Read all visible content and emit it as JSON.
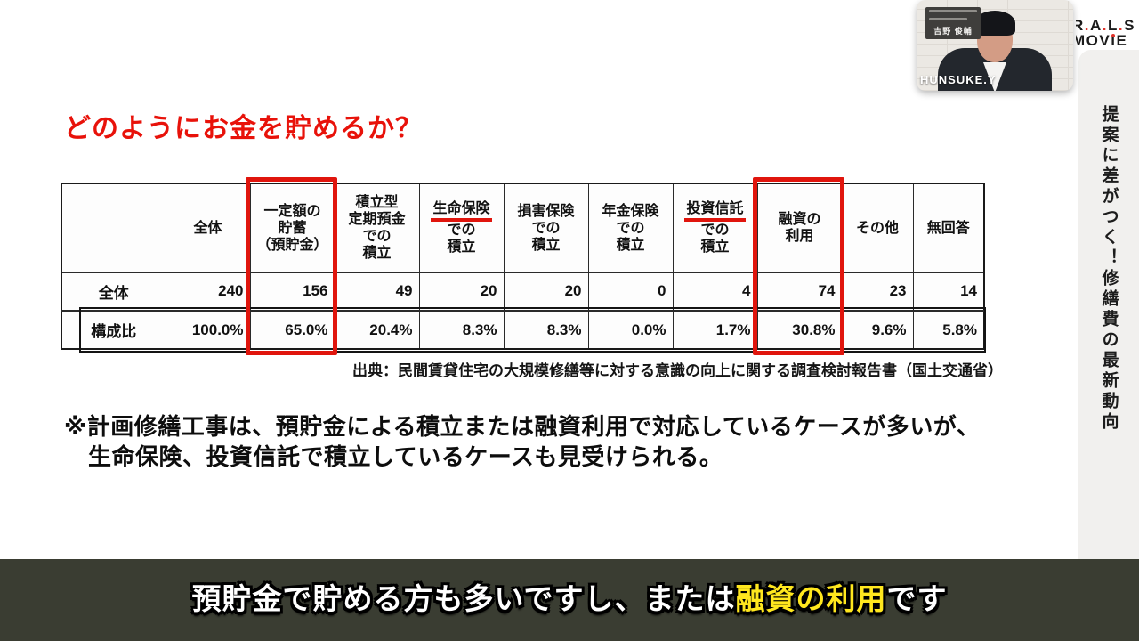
{
  "slide": {
    "title": "どのようにお金を貯めるか？",
    "source": "出典：民間賃貸住宅の大規模修繕等に対する意識の向上に関する調査検討報告書（国土交通省）",
    "note_line1": "※計画修繕工事は、預貯金による積立または融資利用で対応しているケースが多いが、",
    "note_line2": "生命保険、投資信託で積立しているケースも見受けられる。",
    "accent_red": "#e0150d"
  },
  "table": {
    "corner_label": "",
    "columns": [
      {
        "text": "全体",
        "underline_first": false,
        "red_box": false
      },
      {
        "text": "一定額の\n貯蓄\n（預貯金）",
        "underline_first": false,
        "red_box": true
      },
      {
        "text": "積立型\n定期預金\nでの\n積立",
        "underline_first": false,
        "red_box": false
      },
      {
        "text": "生命保険\nでの\n積立",
        "underline_first": true,
        "red_box": false
      },
      {
        "text": "損害保険\nでの\n積立",
        "underline_first": false,
        "red_box": false
      },
      {
        "text": "年金保険\nでの\n積立",
        "underline_first": false,
        "red_box": false
      },
      {
        "text": "投資信託\nでの\n積立",
        "underline_first": true,
        "red_box": false
      },
      {
        "text": "融資の\n利用",
        "underline_first": false,
        "red_box": true
      },
      {
        "text": "その他",
        "underline_first": false,
        "red_box": false
      },
      {
        "text": "無回答",
        "underline_first": false,
        "red_box": false
      }
    ],
    "rows": [
      {
        "label": "全体",
        "values": [
          "240",
          "156",
          "49",
          "20",
          "20",
          "0",
          "4",
          "74",
          "23",
          "14"
        ]
      },
      {
        "label": "構成比",
        "values": [
          "100.0%",
          "65.0%",
          "20.4%",
          "8.3%",
          "8.3%",
          "0.0%",
          "1.7%",
          "30.8%",
          "9.6%",
          "5.8%"
        ]
      }
    ]
  },
  "chart_data": {
    "type": "table",
    "title": "どのようにお金を貯めるか？",
    "categories": [
      "全体",
      "一定額の貯蓄（預貯金）",
      "積立型定期預金での積立",
      "生命保険での積立",
      "損害保険での積立",
      "年金保険での積立",
      "投資信託での積立",
      "融資の利用",
      "その他",
      "無回答"
    ],
    "series": [
      {
        "name": "全体",
        "values": [
          240,
          156,
          49,
          20,
          20,
          0,
          4,
          74,
          23,
          14
        ]
      },
      {
        "name": "構成比",
        "values": [
          "100.0%",
          "65.0%",
          "20.4%",
          "8.3%",
          "8.3%",
          "0.0%",
          "1.7%",
          "30.8%",
          "9.6%",
          "5.8%"
        ]
      }
    ],
    "annotations": [
      "red box: 一定額の貯蓄（預貯金） 156 / 65.0%",
      "red box: 融資の利用 74 / 30.8%",
      "red underline: 生命保険",
      "red underline: 投資信託"
    ]
  },
  "sidebar": {
    "vertical_title": "提案に差がつく！修繕費の最新動向"
  },
  "logo": {
    "line1": "R.A.L.S",
    "line2": "MOViE"
  },
  "webcam": {
    "plate_name": "吉野 俊輔",
    "name_tag": "HUNSUKE.Y"
  },
  "subtitle": {
    "pre": "預貯金で貯める方も多いですし、または",
    "highlight": "融資の利用",
    "post": "です",
    "highlight_color": "#ffe71e",
    "bar_color": "#3a3d32"
  }
}
